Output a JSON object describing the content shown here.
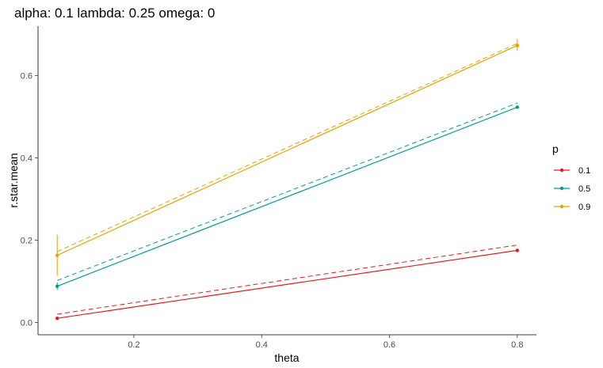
{
  "chart_data": {
    "type": "line",
    "title": "alpha: 0.1 lambda: 0.25 omega: 0",
    "xlabel": "theta",
    "ylabel": "r.star.mean",
    "xlim": [
      0.05,
      0.83
    ],
    "ylim": [
      -0.03,
      0.72
    ],
    "x_ticks": [
      0.2,
      0.4,
      0.6,
      0.8
    ],
    "x_tick_labels": [
      "0.2",
      "0.4",
      "0.6",
      "0.8"
    ],
    "y_ticks": [
      0.0,
      0.2,
      0.4,
      0.6
    ],
    "y_tick_labels": [
      "0.0",
      "0.2",
      "0.4",
      "0.6"
    ],
    "grid": false,
    "legend": {
      "title": "p",
      "position": "right"
    },
    "x": [
      0.08,
      0.8
    ],
    "series": [
      {
        "name": "0.1",
        "color": "#e41a1c",
        "values": [
          0.01,
          0.175
        ],
        "dashed_values": [
          0.02,
          0.188
        ],
        "error_low": [
          0.006,
          0.171
        ],
        "error_high": [
          0.014,
          0.179
        ]
      },
      {
        "name": "0.5",
        "color": "#009e8f",
        "values": [
          0.088,
          0.523
        ],
        "dashed_values": [
          0.102,
          0.533
        ],
        "error_low": [
          0.079,
          0.519
        ],
        "error_high": [
          0.097,
          0.527
        ]
      },
      {
        "name": "0.9",
        "color": "#e6a100",
        "values": [
          0.163,
          0.673
        ],
        "dashed_values": [
          0.172,
          0.678
        ],
        "error_low": [
          0.113,
          0.66
        ],
        "error_high": [
          0.213,
          0.688
        ]
      }
    ]
  }
}
